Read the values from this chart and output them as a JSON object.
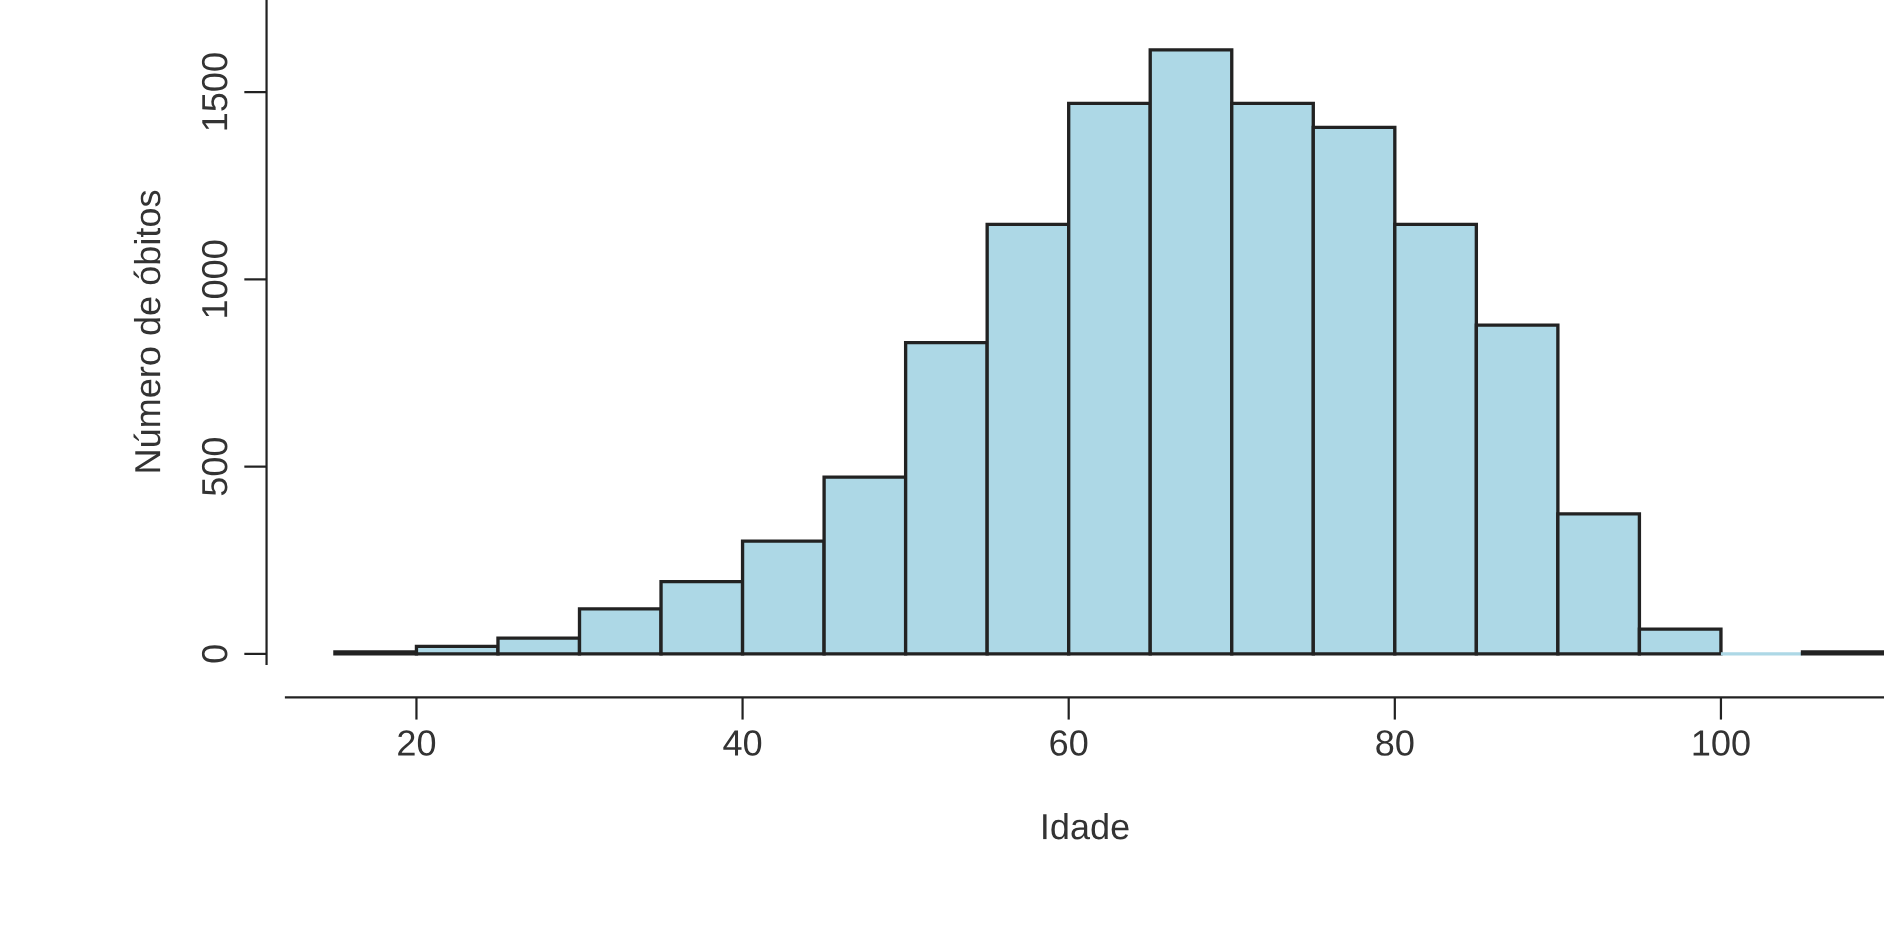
{
  "chart_data": {
    "type": "histogram",
    "xlabel": "Idade",
    "ylabel": "Número de óbitos",
    "bins": [
      15,
      20,
      25,
      30,
      35,
      40,
      45,
      50,
      55,
      60,
      65,
      70,
      75,
      80,
      85,
      90,
      95,
      100,
      105,
      110
    ],
    "values": [
      5,
      20,
      42,
      120,
      193,
      301,
      472,
      831,
      1147,
      1470,
      1613,
      1470,
      1406,
      1147,
      878,
      374,
      66,
      0,
      5
    ],
    "color": "#add8e6",
    "xlim": [
      12,
      110
    ],
    "xticks": [
      20,
      40,
      60,
      80,
      100
    ],
    "ylim": [
      -27,
      1746
    ],
    "yticks": [
      0,
      500,
      1000,
      1500
    ],
    "grid": false
  }
}
